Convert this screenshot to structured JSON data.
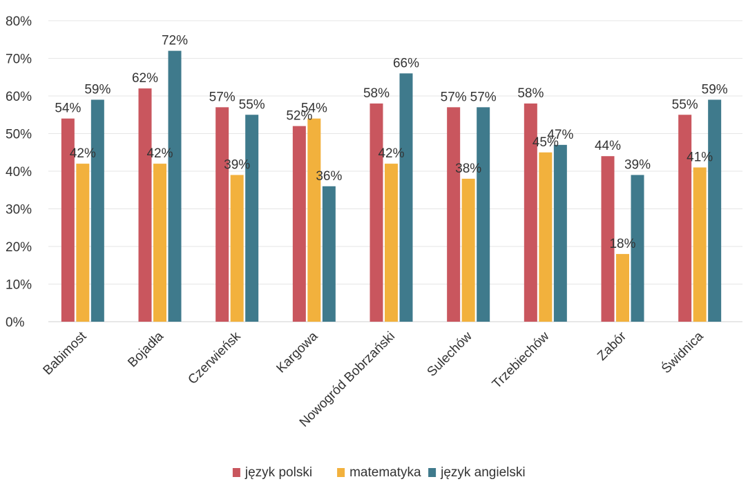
{
  "chart_data": {
    "type": "bar",
    "title": "",
    "xlabel": "",
    "ylabel": "",
    "ylim": [
      0,
      80
    ],
    "y_ticks": [
      "0%",
      "10%",
      "20%",
      "30%",
      "40%",
      "50%",
      "60%",
      "70%",
      "80%"
    ],
    "y_tick_values": [
      0,
      10,
      20,
      30,
      40,
      50,
      60,
      70,
      80
    ],
    "grid": true,
    "legend_position": "bottom",
    "categories": [
      "Babimost",
      "Bojadła",
      "Czerwieńsk",
      "Kargowa",
      "Nowogród Bobrzański",
      "Sulechów",
      "Trzebiechów",
      "Zabór",
      "Świdnica"
    ],
    "series": [
      {
        "name": "język polski",
        "color": "#c9565e",
        "values": [
          54,
          62,
          57,
          52,
          58,
          57,
          58,
          44,
          55
        ],
        "labels": [
          "54%",
          "62%",
          "57%",
          "52%",
          "58%",
          "57%",
          "58%",
          "44%",
          "55%"
        ]
      },
      {
        "name": "matematyka",
        "color": "#f2b13d",
        "values": [
          42,
          42,
          39,
          54,
          42,
          38,
          45,
          18,
          41
        ],
        "labels": [
          "42%",
          "42%",
          "39%",
          "54%",
          "42%",
          "38%",
          "45%",
          "18%",
          "41%"
        ]
      },
      {
        "name": "język angielski",
        "color": "#3f7a8c",
        "values": [
          59,
          72,
          55,
          36,
          66,
          57,
          47,
          39,
          59
        ],
        "labels": [
          "59%",
          "72%",
          "55%",
          "36%",
          "66%",
          "57%",
          "47%",
          "39%",
          "59%"
        ]
      }
    ]
  }
}
